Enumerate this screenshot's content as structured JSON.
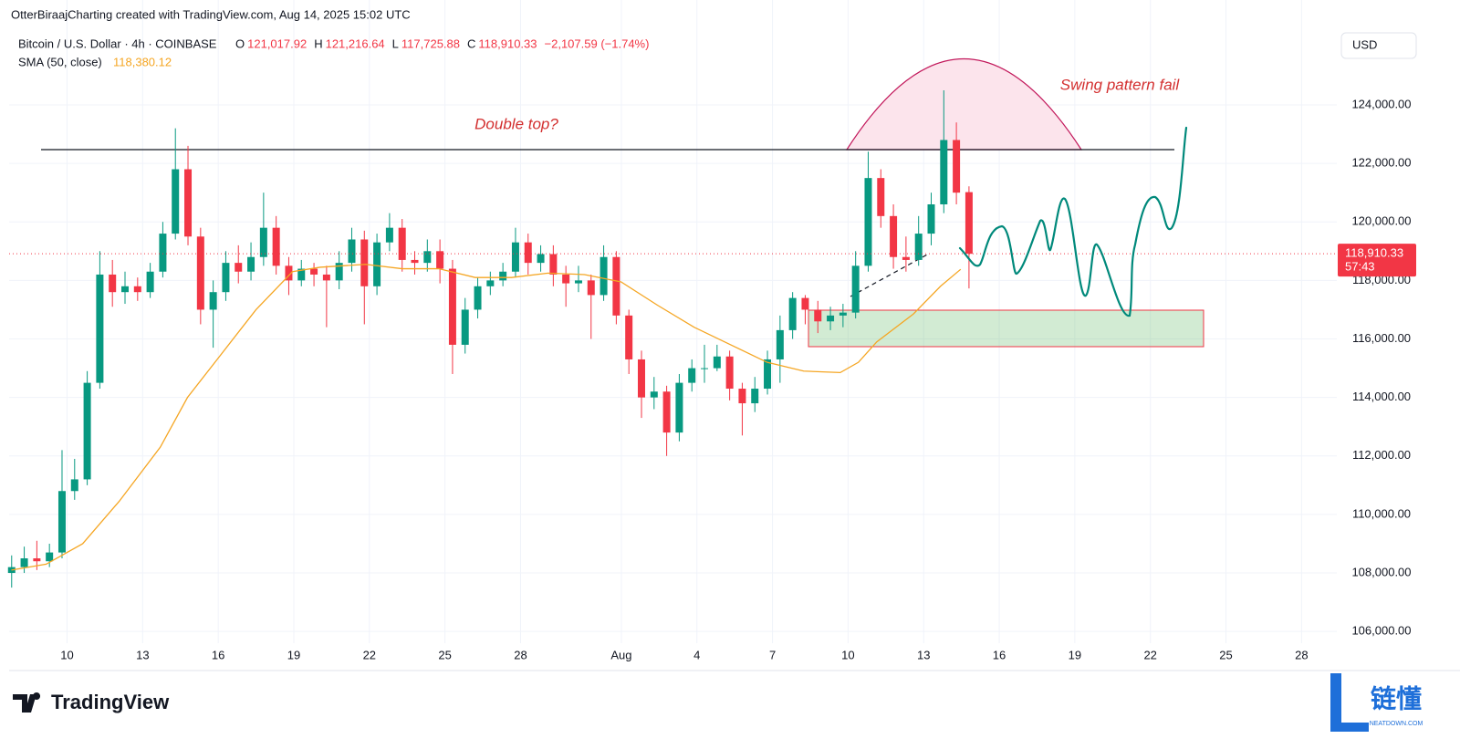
{
  "chart_data": {
    "type": "candlestick",
    "attribution": "OtterBiraajCharting created with TradingView.com, Aug 14, 2025 15:02 UTC",
    "symbol": "Bitcoin / U.S. Dollar · 4h · COINBASE",
    "ohlc_legend": [
      {
        "key": "O",
        "value": "121,017.92"
      },
      {
        "key": "H",
        "value": "121,216.64"
      },
      {
        "key": "L",
        "value": "117,725.88"
      },
      {
        "key": "C",
        "value": "118,910.33"
      }
    ],
    "change": "−2,107.59 (−1.74%)",
    "indicator": "SMA (50, close)",
    "indicator_value": "118,380.12",
    "currency": "USD",
    "up_color": "#089981",
    "down_color": "#f23645",
    "x": [
      7.8,
      8.3,
      8.8,
      9.3,
      9.8,
      10.3,
      10.8,
      11.3,
      11.8,
      12.3,
      12.8,
      13.3,
      13.8,
      14.3,
      14.8,
      15.3,
      15.8,
      16.3,
      16.8,
      17.3,
      17.8,
      18.3,
      18.8,
      19.3,
      19.8,
      20.3,
      20.8,
      21.3,
      21.8,
      22.3,
      22.8,
      23.3,
      23.8,
      24.3,
      24.8,
      25.3,
      25.8,
      26.3,
      26.8,
      27.3,
      27.8,
      28.3,
      28.8,
      29.3,
      29.8,
      30.3,
      30.8,
      31.3,
      31.8,
      32.3,
      32.8,
      33.3,
      33.8,
      34.3,
      34.8,
      35.3,
      35.8,
      36.3,
      36.8,
      37.3,
      37.8,
      38.3,
      38.8,
      39.3,
      39.8,
      40.3,
      40.8,
      41.3,
      41.8,
      42.3,
      42.8,
      43.3,
      43.8,
      44.3,
      44.8,
      45.3,
      45.8
    ],
    "open": [
      108000,
      108200,
      108500,
      108400,
      108700,
      110800,
      111200,
      114500,
      118200,
      117600,
      117800,
      117600,
      118300,
      119600,
      121800,
      119500,
      117000,
      117600,
      118600,
      118300,
      118800,
      119800,
      118500,
      118000,
      118400,
      118200,
      118000,
      118600,
      119400,
      117800,
      119300,
      119800,
      118700,
      118600,
      119000,
      118400,
      115800,
      117000,
      117800,
      118000,
      118300,
      119300,
      118600,
      118900,
      118200,
      117900,
      118000,
      117500,
      118800,
      116800,
      115300,
      114000,
      114200,
      112800,
      114500,
      115000,
      115000,
      115400,
      114300,
      113800,
      114300,
      115300,
      116300,
      117400,
      117000,
      116600,
      116800,
      116900,
      118500,
      121500,
      120200,
      118800,
      118700,
      119600,
      120600,
      122800,
      121017.92
    ],
    "high": [
      108600,
      108900,
      109100,
      109000,
      112200,
      111900,
      114900,
      119000,
      118700,
      118300,
      118100,
      118600,
      120000,
      123200,
      122600,
      119800,
      118000,
      119000,
      119200,
      119300,
      121000,
      120200,
      118800,
      118700,
      118600,
      118500,
      119000,
      119800,
      119700,
      119600,
      120300,
      120100,
      119000,
      119400,
      119400,
      118700,
      117400,
      118100,
      118300,
      118600,
      119800,
      119600,
      119200,
      119200,
      118500,
      118500,
      118200,
      119200,
      119000,
      117000,
      115600,
      114700,
      114400,
      114800,
      115300,
      115800,
      115800,
      115600,
      114500,
      114700,
      115600,
      116800,
      117600,
      117500,
      117300,
      117100,
      117200,
      119000,
      122400,
      121800,
      120600,
      119500,
      120200,
      121000,
      124500,
      123400,
      121216.64
    ],
    "low": [
      107500,
      108000,
      108100,
      108200,
      108500,
      110500,
      111000,
      114300,
      117100,
      117200,
      117300,
      117400,
      118100,
      119400,
      119200,
      116500,
      115700,
      117300,
      117900,
      118000,
      118500,
      118200,
      117500,
      117800,
      117800,
      116400,
      117700,
      118300,
      116500,
      117500,
      119000,
      118300,
      118200,
      118300,
      117900,
      114800,
      115500,
      116700,
      117500,
      117800,
      118100,
      118200,
      118300,
      117800,
      117100,
      117600,
      116000,
      117300,
      116500,
      114800,
      113300,
      113600,
      112000,
      112500,
      114200,
      114500,
      114900,
      113900,
      112700,
      113500,
      114100,
      114500,
      116000,
      116500,
      116200,
      116300,
      116400,
      116700,
      118300,
      119800,
      118400,
      118300,
      118500,
      119200,
      120300,
      120600,
      117725.88
    ],
    "close": [
      108200,
      108500,
      108400,
      108700,
      110800,
      111200,
      114500,
      118200,
      117600,
      117800,
      117600,
      118300,
      119600,
      121800,
      119500,
      117000,
      117600,
      118600,
      118300,
      118800,
      119800,
      118500,
      118000,
      118400,
      118200,
      118000,
      118600,
      119400,
      117800,
      119300,
      119800,
      118700,
      118600,
      119000,
      118400,
      115800,
      117000,
      117800,
      118000,
      118300,
      119300,
      118600,
      118900,
      118200,
      117900,
      118000,
      117500,
      118800,
      116800,
      115300,
      114000,
      114200,
      112800,
      114500,
      115000,
      115000,
      115400,
      114300,
      113800,
      114300,
      115300,
      116300,
      117400,
      117000,
      116600,
      116800,
      116900,
      118500,
      121500,
      120200,
      118800,
      118700,
      119600,
      120600,
      122800,
      121000,
      118910.33
    ],
    "sma": {
      "color": "#f5a623",
      "x": [
        7.79,
        9.17,
        10.62,
        12.07,
        13.7,
        14.78,
        16.05,
        17.5,
        18.95,
        20.04,
        21.85,
        23.3,
        24.75,
        26.2,
        27.64,
        29.09,
        30.54,
        31.99,
        33.44,
        34.89,
        36.34,
        37.79,
        39.24,
        40.69,
        41.41,
        42.14,
        43.59,
        44.67,
        45.47
      ],
      "values": [
        108100,
        108300,
        109000,
        110450,
        112300,
        114000,
        115400,
        117000,
        118300,
        118450,
        118550,
        118400,
        118400,
        118100,
        118100,
        118250,
        118200,
        117950,
        117150,
        116400,
        115800,
        115200,
        114900,
        114850,
        115200,
        115900,
        116850,
        117800,
        118380.12
      ]
    },
    "last_price": {
      "value": 118910.33,
      "label": "118,910.33"
    },
    "countdown": "57:43",
    "xlim": [
      7.7,
      60.4
    ],
    "xticks": [
      10,
      13,
      16,
      19,
      22,
      25,
      28,
      {
        "value": 32,
        "label": "Aug"
      },
      {
        "value": 35,
        "label": "4"
      },
      {
        "value": 38,
        "label": "7"
      },
      {
        "value": 41,
        "label": "10"
      },
      {
        "value": 44,
        "label": "13"
      },
      {
        "value": 47,
        "label": "16"
      },
      {
        "value": 50,
        "label": "19"
      },
      {
        "value": 53,
        "label": "22"
      },
      {
        "value": 56,
        "label": "25"
      },
      {
        "value": 59,
        "label": "28"
      }
    ],
    "ylim": [
      105600,
      126650
    ],
    "yticks": [
      {
        "value": 106000,
        "label": "106,000.00"
      },
      {
        "value": 108000,
        "label": "108,000.00"
      },
      {
        "value": 110000,
        "label": "110,000.00"
      },
      {
        "value": 112000,
        "label": "112,000.00"
      },
      {
        "value": 114000,
        "label": "114,000.00"
      },
      {
        "value": 116000,
        "label": "116,000.00"
      },
      {
        "value": 118000,
        "label": "118,000.00"
      },
      {
        "value": 120000,
        "label": "120,000.00"
      },
      {
        "value": 122000,
        "label": "122,000.00"
      },
      {
        "value": 124000,
        "label": "124,000.00"
      }
    ],
    "grid": true,
    "annotations": [
      "Double top?",
      "Swing pattern fail"
    ],
    "brand": "TradingView",
    "watermark": {
      "logo": "链懂",
      "site": "NEATDOWN.COM"
    }
  }
}
